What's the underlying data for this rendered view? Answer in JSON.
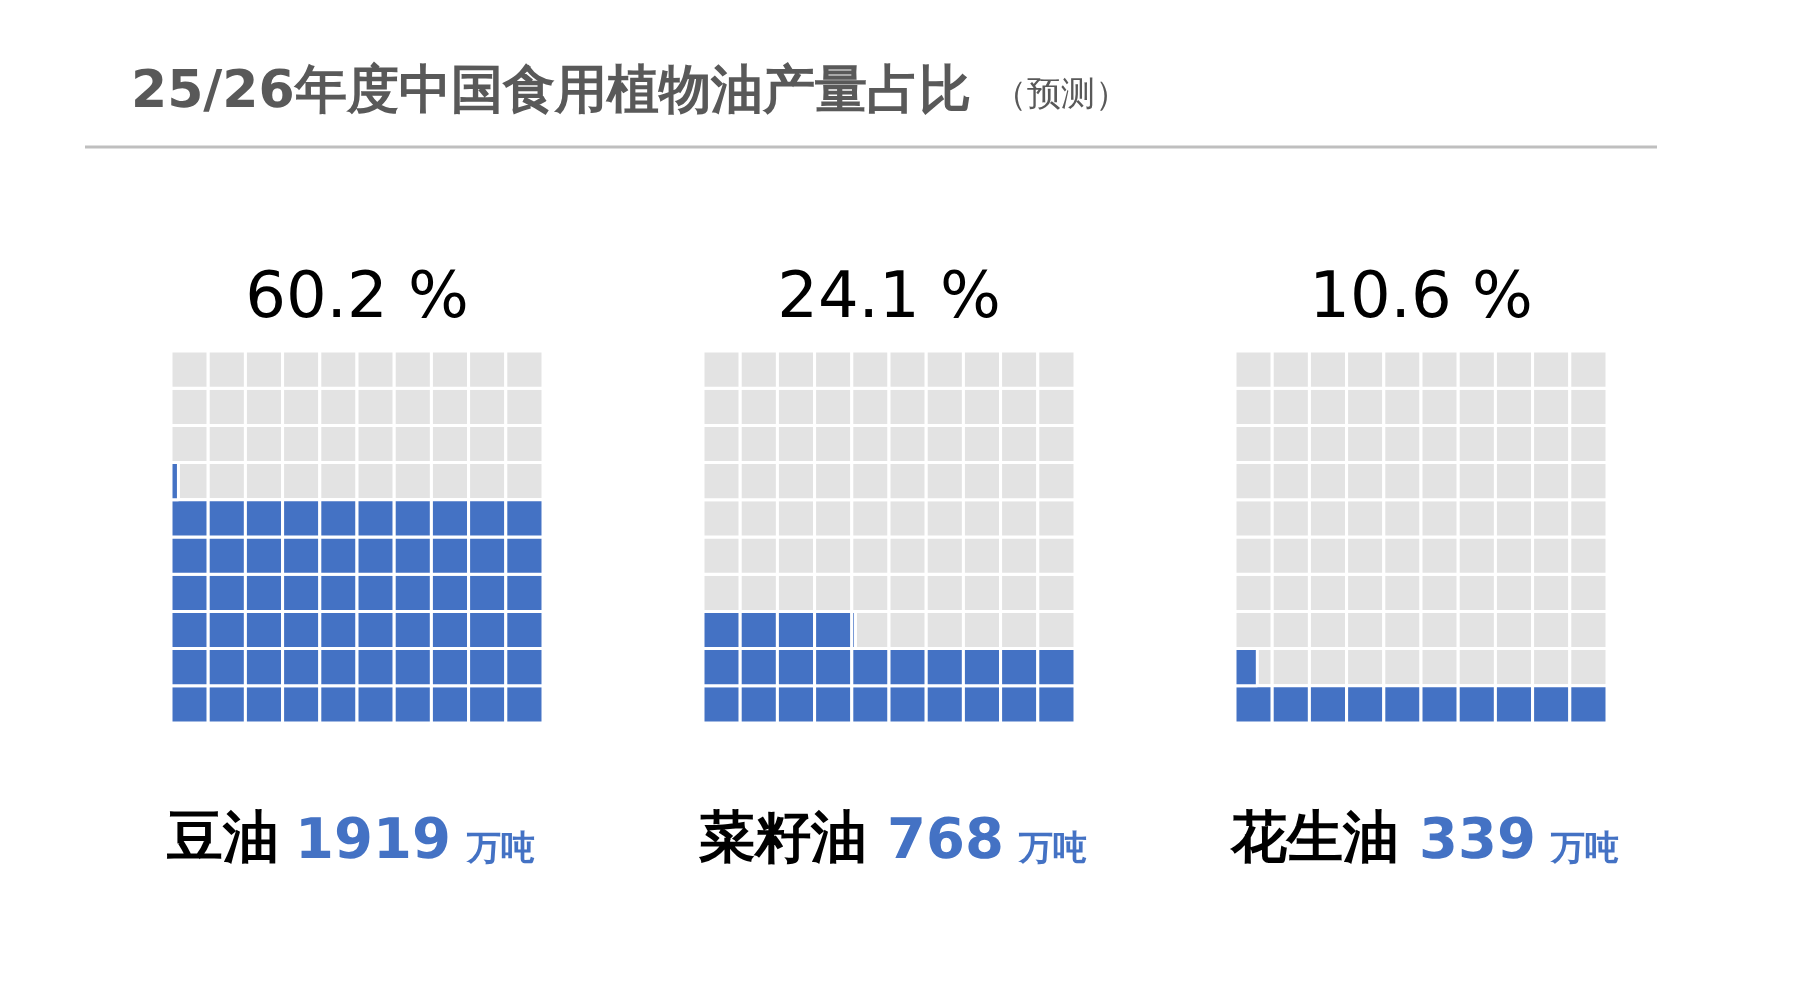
{
  "chart_data": {
    "type": "other",
    "title": "25/26年度中国食用植物油产量占比",
    "subtitle": "（预测）",
    "categories": [
      "豆油",
      "菜籽油",
      "花生油"
    ],
    "values": [
      60.2,
      24.1,
      10.6
    ],
    "value_labels": [
      "60.2 %",
      "24.1 %",
      "10.6 %"
    ],
    "color": "#4472c4",
    "annotations": [
      {
        "text": "1919",
        "x": "豆油"
      },
      {
        "text": "万吨",
        "x": "豆油"
      },
      {
        "text": "768",
        "x": "菜籽油"
      },
      {
        "text": "万吨",
        "x": "菜籽油"
      },
      {
        "text": "339",
        "x": "花生油"
      },
      {
        "text": "万吨",
        "x": "花生油"
      }
    ]
  }
}
